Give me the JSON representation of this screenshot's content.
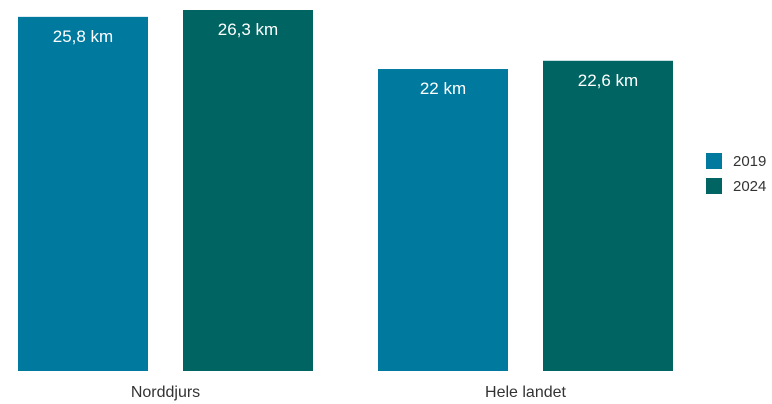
{
  "chart_data": {
    "type": "bar",
    "title": "",
    "xlabel": "",
    "ylabel": "",
    "categories": [
      "Norddjurs",
      "Hele landet"
    ],
    "series": [
      {
        "name": "2019",
        "color": "#00799f",
        "values": [
          25.8,
          22.0
        ],
        "labels": [
          "25,8 km",
          "22 km"
        ]
      },
      {
        "name": "2024",
        "color": "#006562",
        "values": [
          26.3,
          22.6
        ],
        "labels": [
          "26,3 km",
          "22,6 km"
        ]
      }
    ],
    "ylim": [
      0,
      26.3
    ],
    "grid": false,
    "legend_position": "right"
  }
}
